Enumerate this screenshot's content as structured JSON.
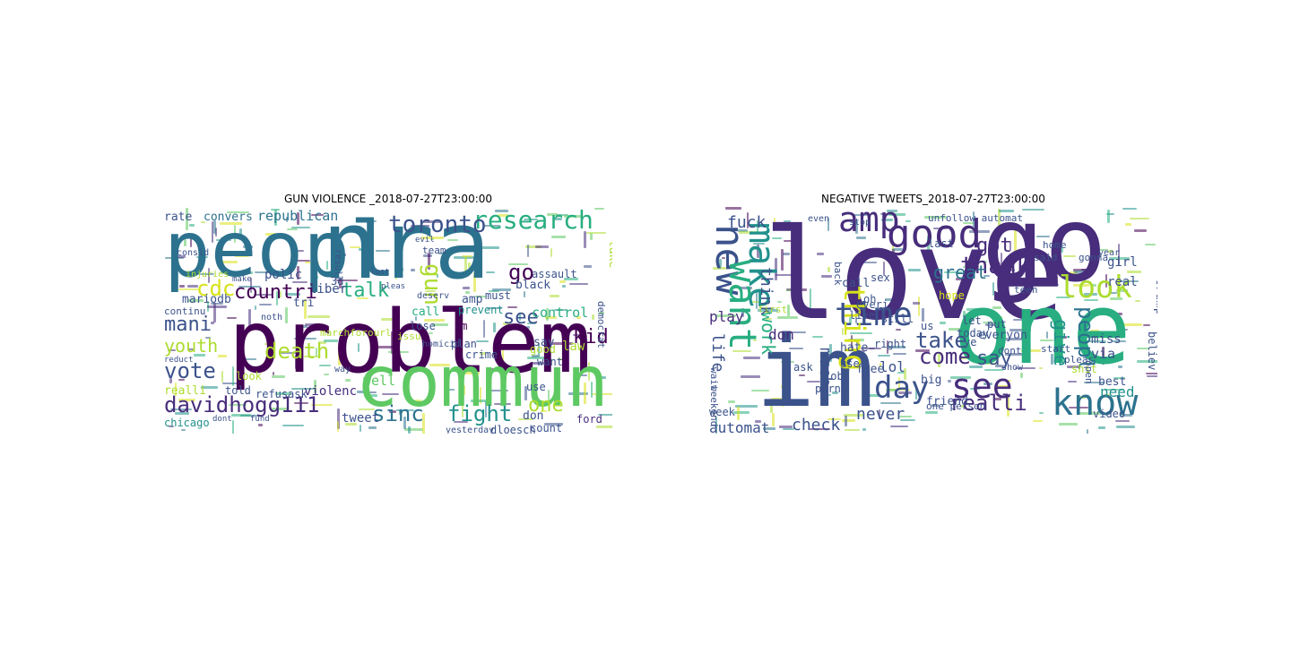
{
  "figure": {
    "left_title": "GUN VIOLENCE _2018-07-27T23:00:00",
    "right_title": "NEGATIVE TWEETS_2018-07-27T23:00:00"
  },
  "palette": {
    "dk": "#440154",
    "pu": "#472d7b",
    "in": "#3b528b",
    "bl": "#2c728e",
    "te": "#21918c",
    "gt": "#28ae80",
    "gr": "#5ec962",
    "lg": "#addc30",
    "ye": "#d8e219"
  },
  "left_cloud": [
    {
      "t": "peopl",
      "c": "bl"
    },
    {
      "t": "nra",
      "c": "bl"
    },
    {
      "t": "problem",
      "c": "dk"
    },
    {
      "t": "commun",
      "c": "gr"
    },
    {
      "t": "research",
      "c": "gt"
    },
    {
      "t": "toronto",
      "c": "in"
    },
    {
      "t": "cdc",
      "c": "ye"
    },
    {
      "t": "countri",
      "c": "dk"
    },
    {
      "t": "talk",
      "c": "gt"
    },
    {
      "t": "go",
      "c": "dk"
    },
    {
      "t": "gun",
      "c": "lg"
    },
    {
      "t": "mani",
      "c": "in"
    },
    {
      "t": "youth",
      "c": "lg"
    },
    {
      "t": "vote",
      "c": "in"
    },
    {
      "t": "death",
      "c": "lg"
    },
    {
      "t": "davidhogg111",
      "c": "pu"
    },
    {
      "t": "sinc",
      "c": "bl"
    },
    {
      "t": "fight",
      "c": "te"
    },
    {
      "t": "one",
      "c": "lg"
    },
    {
      "t": "kid",
      "c": "dk"
    },
    {
      "t": "see",
      "c": "in"
    },
    {
      "t": "republican",
      "c": "bl"
    },
    {
      "t": "rate",
      "c": "in"
    },
    {
      "t": "convers",
      "c": "bl"
    },
    {
      "t": "polic",
      "c": "in"
    },
    {
      "t": "control",
      "c": "gt"
    },
    {
      "t": "mariodb",
      "c": "in"
    },
    {
      "t": "tri",
      "c": "in"
    },
    {
      "t": "tweet",
      "c": "in"
    },
    {
      "t": "violenc",
      "c": "pu"
    },
    {
      "t": "chicago",
      "c": "te"
    },
    {
      "t": "amp",
      "c": "in"
    },
    {
      "t": "black",
      "c": "in"
    },
    {
      "t": "liber",
      "c": "in"
    },
    {
      "t": "say",
      "c": "in"
    },
    {
      "t": "law",
      "c": "lg"
    },
    {
      "t": "don",
      "c": "in"
    },
    {
      "t": "ford",
      "c": "pu"
    },
    {
      "t": "take",
      "c": "lg"
    },
    {
      "t": "3d",
      "c": "in"
    },
    {
      "t": "want",
      "c": "in"
    },
    {
      "t": "prevent",
      "c": "te"
    },
    {
      "t": "assault",
      "c": "in"
    },
    {
      "t": "realli",
      "c": "lg"
    },
    {
      "t": "told",
      "c": "in"
    },
    {
      "t": "refus",
      "c": "in"
    },
    {
      "t": "look",
      "c": "lg"
    },
    {
      "t": "ask",
      "c": "in"
    },
    {
      "t": "well",
      "c": "gr"
    },
    {
      "t": "call",
      "c": "gt"
    },
    {
      "t": "lose",
      "c": "in"
    },
    {
      "t": "im",
      "c": "dk"
    },
    {
      "t": "plan",
      "c": "in"
    },
    {
      "t": "crime",
      "c": "in"
    },
    {
      "t": "good",
      "c": "lg"
    },
    {
      "t": "count",
      "c": "in"
    },
    {
      "t": "use",
      "c": "in"
    },
    {
      "t": "must",
      "c": "in"
    },
    {
      "t": "dloesch",
      "c": "in"
    },
    {
      "t": "yesterday",
      "c": "in"
    },
    {
      "t": "continu",
      "c": "in"
    },
    {
      "t": "marchforourl",
      "c": "lg"
    },
    {
      "t": "injuries",
      "c": "lg"
    },
    {
      "t": "consid",
      "c": "in"
    },
    {
      "t": "noth",
      "c": "in"
    },
    {
      "t": "way",
      "c": "in"
    },
    {
      "t": "deserv",
      "c": "in"
    },
    {
      "t": "homicid",
      "c": "in"
    },
    {
      "t": "democrat",
      "c": "in"
    },
    {
      "t": "team",
      "c": "in"
    },
    {
      "t": "evil",
      "c": "in"
    },
    {
      "t": "lost",
      "c": "in"
    },
    {
      "t": "pleas",
      "c": "in"
    },
    {
      "t": "dont",
      "c": "in"
    },
    {
      "t": "fund",
      "c": "in"
    },
    {
      "t": "reduct",
      "c": "in"
    },
    {
      "t": "result",
      "c": "in"
    },
    {
      "t": "make",
      "c": "in"
    },
    {
      "t": "david",
      "c": "in"
    },
    {
      "t": "issu",
      "c": "lg"
    },
    {
      "t": "impeachtrump",
      "c": "in"
    }
  ],
  "right_cloud": [
    {
      "t": "love",
      "c": "pu"
    },
    {
      "t": "go",
      "c": "pu"
    },
    {
      "t": "one",
      "c": "gt"
    },
    {
      "t": "im",
      "c": "in"
    },
    {
      "t": "amp",
      "c": "pu"
    },
    {
      "t": "good",
      "c": "pu"
    },
    {
      "t": "new",
      "c": "in"
    },
    {
      "t": "make",
      "c": "te"
    },
    {
      "t": "want",
      "c": "gt"
    },
    {
      "t": "time",
      "c": "in"
    },
    {
      "t": "day",
      "c": "in"
    },
    {
      "t": "see",
      "c": "pu"
    },
    {
      "t": "know",
      "c": "bl"
    },
    {
      "t": "look",
      "c": "lg"
    },
    {
      "t": "thank",
      "c": "pu"
    },
    {
      "t": "got",
      "c": "pu"
    },
    {
      "t": "great",
      "c": "bl"
    },
    {
      "t": "fuck",
      "c": "in"
    },
    {
      "t": "thing",
      "c": "ye"
    },
    {
      "t": "think",
      "c": "in"
    },
    {
      "t": "take",
      "c": "in"
    },
    {
      "t": "come",
      "c": "pu"
    },
    {
      "t": "peopl",
      "c": "bl"
    },
    {
      "t": "say",
      "c": "in"
    },
    {
      "t": "give",
      "c": "te"
    },
    {
      "t": "realli",
      "c": "pu"
    },
    {
      "t": "never",
      "c": "in"
    },
    {
      "t": "check",
      "c": "in"
    },
    {
      "t": "automat",
      "c": "in"
    },
    {
      "t": "much",
      "c": "in"
    },
    {
      "t": "work",
      "c": "gt"
    },
    {
      "t": "life",
      "c": "in"
    },
    {
      "t": "play",
      "c": "pu"
    },
    {
      "t": "don",
      "c": "pu"
    },
    {
      "t": "lol",
      "c": "in"
    },
    {
      "t": "need",
      "c": "te"
    },
    {
      "t": "trump",
      "c": "in"
    },
    {
      "t": "girl",
      "c": "in"
    },
    {
      "t": "real",
      "c": "in"
    },
    {
      "t": "miss",
      "c": "in"
    },
    {
      "t": "best",
      "c": "in"
    },
    {
      "t": "via",
      "c": "in"
    },
    {
      "t": "video",
      "c": "in"
    },
    {
      "t": "hate",
      "c": "in"
    },
    {
      "t": "job",
      "c": "in"
    },
    {
      "t": "ask",
      "c": "in"
    },
    {
      "t": "right",
      "c": "in"
    },
    {
      "t": "everyon",
      "c": "in"
    },
    {
      "t": "today",
      "c": "in"
    },
    {
      "t": "let",
      "c": "in"
    },
    {
      "t": "big",
      "c": "in"
    },
    {
      "t": "friend",
      "c": "in"
    },
    {
      "t": "free",
      "c": "in"
    },
    {
      "t": "hope",
      "c": "ye"
    },
    {
      "t": "one person",
      "c": "in"
    },
    {
      "t": "shit",
      "c": "lg"
    },
    {
      "t": "show",
      "c": "in"
    },
    {
      "t": "believ",
      "c": "in"
    },
    {
      "t": "open",
      "c": "in"
    },
    {
      "t": "week",
      "c": "in"
    },
    {
      "t": "weekend",
      "c": "in"
    },
    {
      "t": "wait",
      "c": "in"
    },
    {
      "t": "live",
      "c": "in"
    },
    {
      "t": "call",
      "c": "in"
    },
    {
      "t": "everi",
      "c": "in"
    },
    {
      "t": "sex",
      "c": "in"
    },
    {
      "t": "use",
      "c": "in"
    },
    {
      "t": "oh",
      "c": "in"
    },
    {
      "t": "last",
      "c": "in"
    },
    {
      "t": "put",
      "c": "in"
    },
    {
      "t": "ye",
      "c": "in"
    },
    {
      "t": "us",
      "c": "in"
    },
    {
      "t": "said",
      "c": "in"
    },
    {
      "t": "home",
      "c": "in"
    },
    {
      "t": "gonna",
      "c": "in"
    },
    {
      "t": "year",
      "c": "in"
    },
    {
      "t": "unfollow automat",
      "c": "in"
    },
    {
      "t": "porn",
      "c": "in"
    },
    {
      "t": "dont",
      "c": "in"
    },
    {
      "t": "teen",
      "c": "in"
    },
    {
      "t": "start",
      "c": "in"
    },
    {
      "t": "pleas",
      "c": "in"
    },
    {
      "t": "still",
      "c": "in"
    },
    {
      "t": "first",
      "c": "lg"
    },
    {
      "t": "back",
      "c": "in"
    },
    {
      "t": "even",
      "c": "in"
    },
    {
      "t": "stop",
      "c": "in"
    }
  ]
}
